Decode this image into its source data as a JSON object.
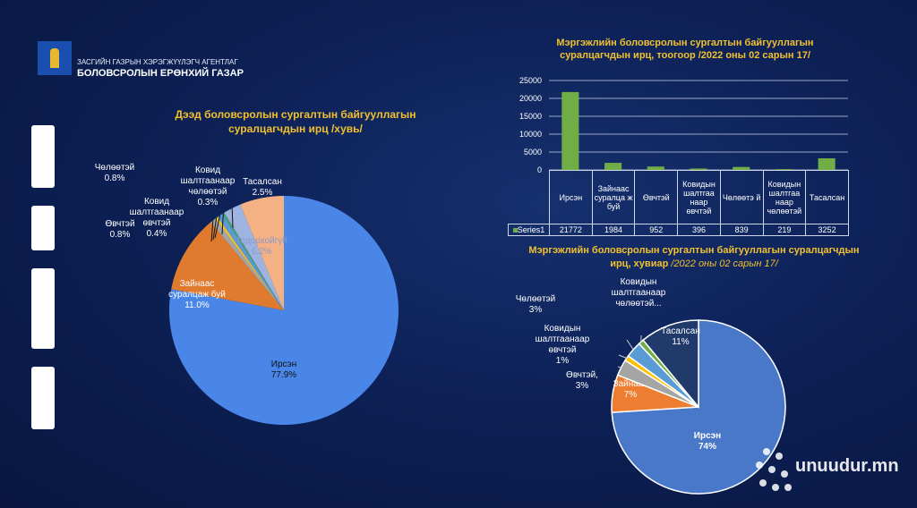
{
  "header": {
    "org_line1": "ЗАСГИЙН ГАЗРЫН ХЭРЭГЖҮҮЛЭГЧ АГЕНТЛАГ",
    "org_line2": "БОЛОВСРОЛЫН ЕРӨНХИЙ ГАЗАР"
  },
  "watermark": "unuudur.mn",
  "chart_data": [
    {
      "type": "pie",
      "title": "Дээд боловсролын сургалтын байгууллагын суралцагчдын ирц /хувь/",
      "slices": [
        {
          "label": "Ирсэн",
          "value": 77.9,
          "display": "77.9%",
          "color": "#4a86e8"
        },
        {
          "label": "Зайнаас суралцаж буй",
          "value": 11.0,
          "display": "11.0%",
          "color": "#e07a2e"
        },
        {
          "label": "Өвчтэй",
          "value": 0.8,
          "display": "0.8%",
          "color": "#a5a5a5"
        },
        {
          "label": "Ковид шалтгаанаар өвчтэй",
          "value": 0.4,
          "display": "0.4%",
          "color": "#f2c12e"
        },
        {
          "label": "Чөлөөтэй",
          "value": 0.8,
          "display": "0.8%",
          "color": "#5b9bd5"
        },
        {
          "label": "Ковид шалтгаанаар чөлөөтэй",
          "value": 0.3,
          "display": "0.3%",
          "color": "#4aa36a"
        },
        {
          "label": "Тасалсан",
          "value": 2.5,
          "display": "2.5%",
          "color": "#9fb3e0"
        },
        {
          "label": "Тодорхойгүй",
          "value": 6.2,
          "display": "6.2%",
          "color": "#f4b183"
        }
      ]
    },
    {
      "type": "bar",
      "title": "Мэргэжлийн боловсролын сургалтын байгууллагын суралцагчдын ирц, тоогоор /2022 оны 02 сарын 17/",
      "categories": [
        "Ирсэн",
        "Зайнаас суралцаж буй",
        "Өвчтэй",
        "Ковидын шалтгаанаар өвчтэй",
        "Чөлөөтэй",
        "Ковидын шалтгаанаар чөлөөтэй",
        "Тасалсан"
      ],
      "category_display": [
        "Ирсэн",
        "Зайнаас суралца ж буй",
        "Өвчтэй",
        "Ковидын шалтгаа наар өвчтэй",
        "Чөлөөтэ й",
        "Ковидын шалтгаа наар чөлөөтэй",
        "Тасалсан"
      ],
      "series": [
        {
          "name": "Series1",
          "values": [
            21772,
            1984,
            952,
            396,
            839,
            219,
            3252
          ],
          "color": "#70ad47"
        }
      ],
      "ylim": [
        0,
        25000
      ],
      "yticks": [
        "25000",
        "20000",
        "15000",
        "10000",
        "5000",
        "0"
      ],
      "grid": true,
      "legend": "table"
    },
    {
      "type": "pie",
      "title": "Мэргэжлийн боловсролын сургалтын байгууллагын суралцагчдын ирц, хувиар",
      "subtitle": "/2022 оны 02 сарын 17/",
      "slices": [
        {
          "label": "Ирсэн",
          "value": 74,
          "display": "74%",
          "color": "#4a78c8"
        },
        {
          "label": "Зайнаас",
          "value": 7,
          "display": "7%",
          "color": "#ed7d31"
        },
        {
          "label": "Өвчтэй,",
          "value": 3,
          "display": "3%",
          "color": "#a5a5a5"
        },
        {
          "label": "Ковидын шалтгаанаар өвчтэй",
          "value": 1,
          "display": "1%",
          "color": "#ffc000"
        },
        {
          "label": "Чөлөөтэй",
          "value": 3,
          "display": "3%",
          "color": "#5b9bd5"
        },
        {
          "label": "Ковидын шалтгаанаар чөлөөтэй...",
          "value": 1,
          "display": "",
          "color": "#70ad47"
        },
        {
          "label": "Тасалсан",
          "value": 11,
          "display": "11%",
          "color": "#1f3a6b"
        }
      ]
    }
  ]
}
